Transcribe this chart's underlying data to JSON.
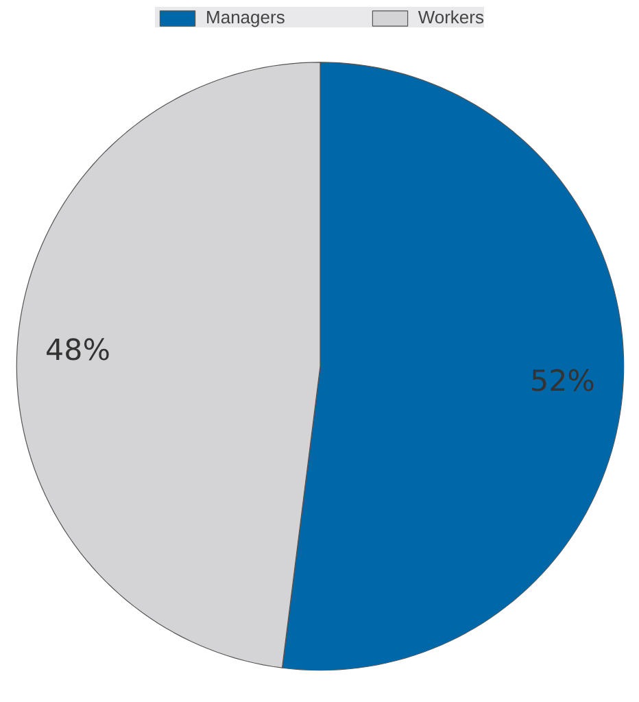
{
  "chart_data": {
    "type": "pie",
    "categories": [
      "Managers",
      "Workers"
    ],
    "values": [
      52,
      48
    ],
    "colors": [
      "#0068a8",
      "#d4d4d6"
    ],
    "value_labels": [
      "52%",
      "48%"
    ],
    "legend": "top"
  }
}
